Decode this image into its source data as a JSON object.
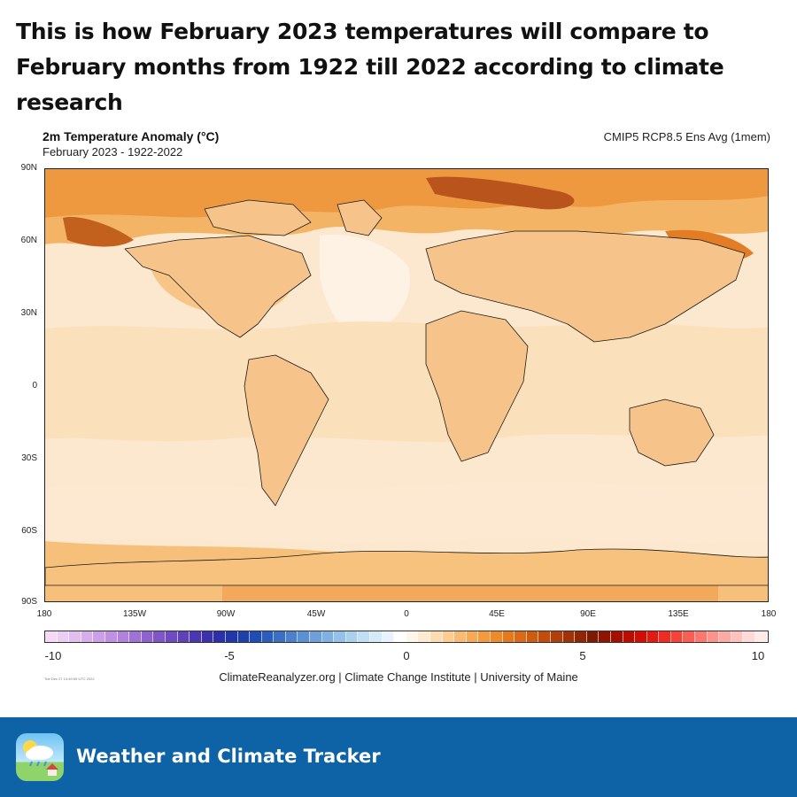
{
  "headline": "This is how February 2023 temperatures will compare to February months from 1922 till 2022 according to climate research",
  "map": {
    "title": "2m Temperature Anomaly (°C)",
    "subtitle": "February 2023 - 1922-2022",
    "model": "CMIP5 RCP8.5 Ens Avg (1mem)",
    "lat_labels": [
      "90N",
      "60N",
      "30N",
      "0",
      "30S",
      "60S",
      "90S"
    ],
    "lon_labels": [
      "180",
      "135W",
      "90W",
      "45W",
      "0",
      "45E",
      "90E",
      "135E",
      "180"
    ]
  },
  "colorbar": {
    "labels": [
      "-10",
      "-5",
      "0",
      "5",
      "10"
    ],
    "colors": [
      "#f5d9f5",
      "#eccdf3",
      "#e2bdf0",
      "#d7aeec",
      "#cc9fe8",
      "#bf90e3",
      "#b081dd",
      "#a072d6",
      "#8f63cf",
      "#7f56c8",
      "#6e4bc0",
      "#5d41b9",
      "#4a37b2",
      "#3a31ab",
      "#2c30a8",
      "#2136a8",
      "#1c40ad",
      "#1f4db3",
      "#2b5dbb",
      "#3a6fc3",
      "#4b80cb",
      "#5b90d3",
      "#6da0db",
      "#80b1e2",
      "#95c1e9",
      "#aad0ef",
      "#c0def4",
      "#d5eaf8",
      "#e8f3fb",
      "#ffffff",
      "#fff6ea",
      "#feead0",
      "#fddcb0",
      "#fccc90",
      "#f9bb72",
      "#f7aa55",
      "#f39a3d",
      "#ee8a2a",
      "#e57a1d",
      "#da6a15",
      "#ce5c10",
      "#c04d0c",
      "#b13f09",
      "#a03206",
      "#8f2604",
      "#7e1a02",
      "#8f1400",
      "#a50f00",
      "#bb0c00",
      "#d00e04",
      "#e21a10",
      "#ee2c22",
      "#f44438",
      "#f85e53",
      "#fa786e",
      "#fc928a",
      "#fdaaa4",
      "#fec2bd",
      "#fed9d5",
      "#ffeaea"
    ]
  },
  "credit": "ClimateReanalyzer.org | Climate Change Institute | University of Maine",
  "timestamp": "Tue Dec 27 13:49:59 UTC 2022",
  "footer": {
    "app_name": "Weather and Climate Tracker"
  }
}
